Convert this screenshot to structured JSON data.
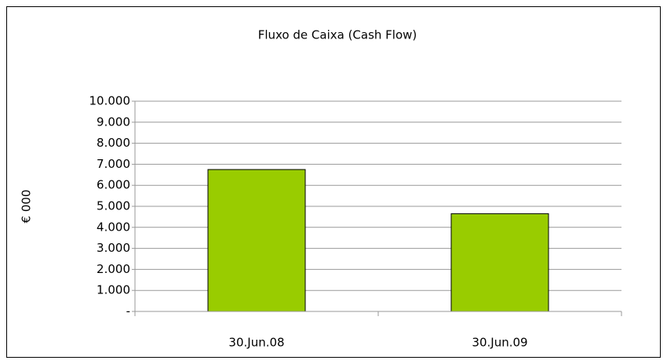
{
  "chart_data": {
    "type": "bar",
    "title": "Fluxo de Caixa (Cash Flow)",
    "y_label": "€ 000",
    "categories": [
      "30.Jun.08",
      "30.Jun.09"
    ],
    "values": [
      6750,
      4650
    ],
    "color": "#99cc00",
    "ylim": [
      0,
      10000
    ],
    "yticks": [
      {
        "value": 0,
        "label": "-"
      },
      {
        "value": 1000,
        "label": "1.000"
      },
      {
        "value": 2000,
        "label": "2.000"
      },
      {
        "value": 3000,
        "label": "3.000"
      },
      {
        "value": 4000,
        "label": "4.000"
      },
      {
        "value": 5000,
        "label": "5.000"
      },
      {
        "value": 6000,
        "label": "6.000"
      },
      {
        "value": 7000,
        "label": "7.000"
      },
      {
        "value": 8000,
        "label": "8.000"
      },
      {
        "value": 9000,
        "label": "9.000"
      },
      {
        "value": 10000,
        "label": "10.000"
      }
    ],
    "grid": true
  }
}
